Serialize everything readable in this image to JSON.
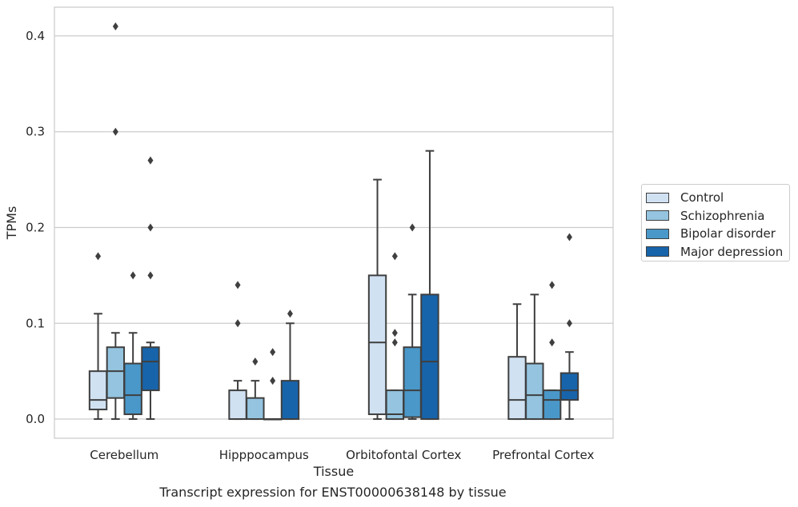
{
  "caption": "Transcript expression for ENST00000638148 by tissue",
  "chart_data": {
    "type": "box",
    "title": "",
    "xlabel": "Tissue",
    "ylabel": "TPMs",
    "ylim": [
      -0.02,
      0.43
    ],
    "yticks": [
      0.0,
      0.1,
      0.2,
      0.3,
      0.4
    ],
    "ytick_labels": [
      "0.0",
      "0.1",
      "0.2",
      "0.3",
      "0.4"
    ],
    "grid": "horizontal",
    "legend_position": "right",
    "categories": [
      "Cerebellum",
      "Hipppocampus",
      "Orbitofontal Cortex",
      "Prefrontal Cortex"
    ],
    "series": [
      {
        "name": "Control",
        "color": "#d0e1f2",
        "boxes": [
          {
            "min": 0.0,
            "q1": 0.01,
            "median": 0.02,
            "q3": 0.05,
            "max": 0.11,
            "outliers": [
              0.17
            ]
          },
          {
            "min": 0.0,
            "q1": 0.0,
            "median": 0.0,
            "q3": 0.03,
            "max": 0.04,
            "outliers": [
              0.1,
              0.14
            ]
          },
          {
            "min": 0.0,
            "q1": 0.005,
            "median": 0.08,
            "q3": 0.15,
            "max": 0.25,
            "outliers": []
          },
          {
            "min": 0.0,
            "q1": 0.0,
            "median": 0.02,
            "q3": 0.065,
            "max": 0.12,
            "outliers": []
          }
        ]
      },
      {
        "name": "Schizophrenia",
        "color": "#94c4df",
        "boxes": [
          {
            "min": 0.0,
            "q1": 0.022,
            "median": 0.05,
            "q3": 0.075,
            "max": 0.09,
            "outliers": [
              0.3,
              0.41
            ]
          },
          {
            "min": 0.0,
            "q1": 0.0,
            "median": 0.0,
            "q3": 0.022,
            "max": 0.04,
            "outliers": [
              0.06
            ]
          },
          {
            "min": 0.0,
            "q1": 0.0,
            "median": 0.005,
            "q3": 0.03,
            "max": 0.03,
            "outliers": [
              0.08,
              0.09,
              0.17
            ]
          },
          {
            "min": 0.0,
            "q1": 0.0,
            "median": 0.025,
            "q3": 0.058,
            "max": 0.13,
            "outliers": []
          }
        ]
      },
      {
        "name": "Bipolar disorder",
        "color": "#4a98c9",
        "boxes": [
          {
            "min": 0.0,
            "q1": 0.005,
            "median": 0.025,
            "q3": 0.058,
            "max": 0.09,
            "outliers": [
              0.15
            ]
          },
          {
            "min": 0.0,
            "q1": 0.0,
            "median": 0.0,
            "q3": 0.0,
            "max": 0.0,
            "outliers": [
              0.04,
              0.07
            ]
          },
          {
            "min": 0.0,
            "q1": 0.002,
            "median": 0.03,
            "q3": 0.075,
            "max": 0.13,
            "outliers": [
              0.2
            ]
          },
          {
            "min": 0.0,
            "q1": 0.0,
            "median": 0.02,
            "q3": 0.03,
            "max": 0.03,
            "outliers": [
              0.08,
              0.14
            ]
          }
        ]
      },
      {
        "name": "Major depression",
        "color": "#1764ab",
        "boxes": [
          {
            "min": 0.0,
            "q1": 0.03,
            "median": 0.06,
            "q3": 0.075,
            "max": 0.08,
            "outliers": [
              0.15,
              0.2,
              0.27
            ]
          },
          {
            "min": 0.0,
            "q1": 0.0,
            "median": 0.0,
            "q3": 0.04,
            "max": 0.1,
            "outliers": [
              0.11
            ]
          },
          {
            "min": 0.0,
            "q1": 0.0,
            "median": 0.06,
            "q3": 0.13,
            "max": 0.28,
            "outliers": []
          },
          {
            "min": 0.0,
            "q1": 0.02,
            "median": 0.03,
            "q3": 0.048,
            "max": 0.07,
            "outliers": [
              0.1,
              0.19
            ]
          }
        ]
      }
    ]
  }
}
